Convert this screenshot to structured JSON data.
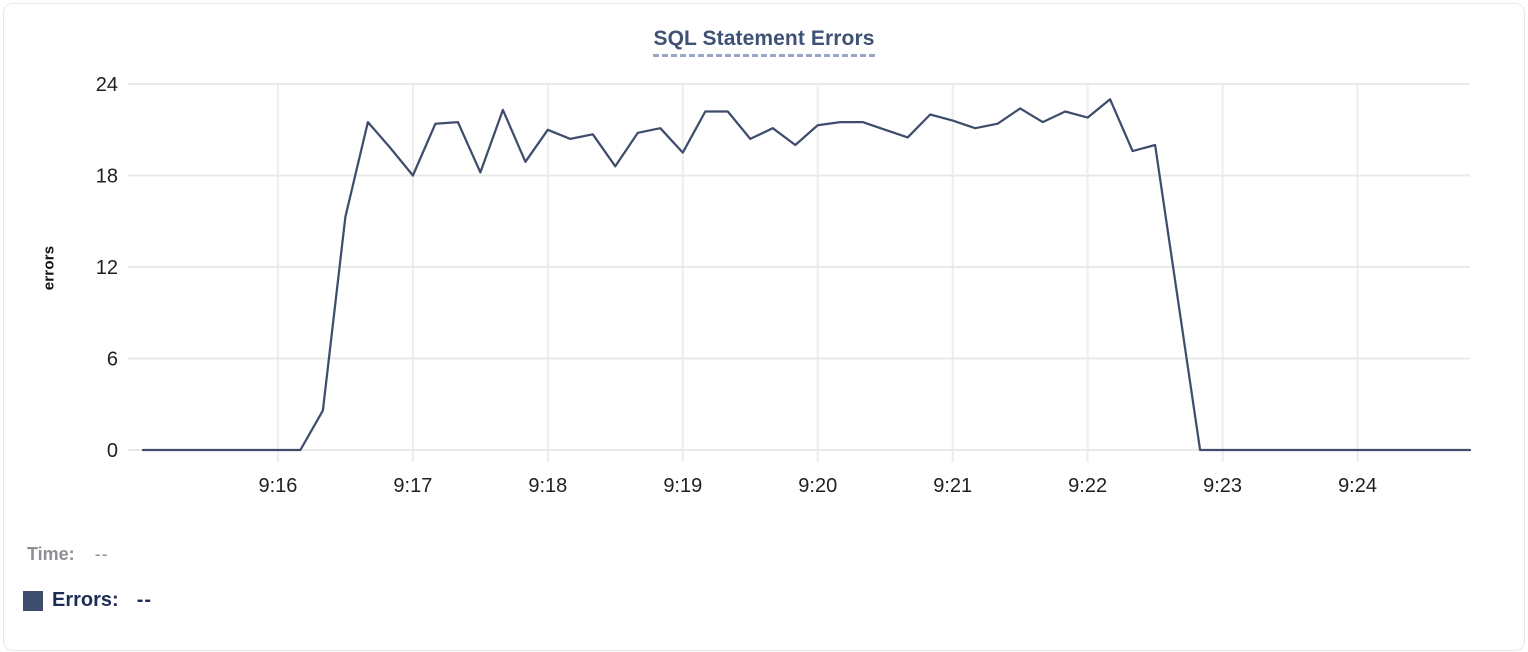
{
  "header": {
    "title": "SQL Statement Errors",
    "title_color": "#3f5175",
    "underline_color": "#9ba7c6"
  },
  "readout": {
    "time_label": "Time:",
    "time_value": "--",
    "time_color": "#8e8f94",
    "errors_label": "Errors:",
    "errors_value": "--",
    "errors_color": "#1d2d56",
    "swatch_color": "#3f4d6d"
  },
  "chart_data": {
    "type": "line",
    "title": "SQL Statement Errors",
    "xlabel": "",
    "ylabel": "errors",
    "ylim": [
      0,
      24
    ],
    "y_ticks": [
      0,
      6,
      12,
      18,
      24
    ],
    "x_tick_labels": [
      "9:16",
      "9:17",
      "9:18",
      "9:19",
      "9:20",
      "9:21",
      "9:22",
      "9:23",
      "9:24"
    ],
    "x_range": [
      "9:15:00",
      "9:24:50"
    ],
    "grid": true,
    "grid_color": "#e9e9e9",
    "vgrid_color": "#ededed",
    "tick_label_color": "#1f1f1f",
    "legend_position": "bottom-left",
    "series": [
      {
        "name": "Errors",
        "color": "#3f4d6d",
        "x_times": [
          "9:15:00",
          "9:15:10",
          "9:15:20",
          "9:15:30",
          "9:15:40",
          "9:15:50",
          "9:16:00",
          "9:16:10",
          "9:16:20",
          "9:16:30",
          "9:16:40",
          "9:16:50",
          "9:17:00",
          "9:17:10",
          "9:17:20",
          "9:17:30",
          "9:17:40",
          "9:17:50",
          "9:18:00",
          "9:18:10",
          "9:18:20",
          "9:18:30",
          "9:18:40",
          "9:18:50",
          "9:19:00",
          "9:19:10",
          "9:19:20",
          "9:19:30",
          "9:19:40",
          "9:19:50",
          "9:20:00",
          "9:20:10",
          "9:20:20",
          "9:20:30",
          "9:20:40",
          "9:20:50",
          "9:21:00",
          "9:21:10",
          "9:21:20",
          "9:21:30",
          "9:21:40",
          "9:21:50",
          "9:22:00",
          "9:22:10",
          "9:22:20",
          "9:22:30",
          "9:22:40",
          "9:22:50",
          "9:23:00",
          "9:23:10",
          "9:23:20",
          "9:23:30",
          "9:23:40",
          "9:23:50",
          "9:24:00",
          "9:24:10",
          "9:24:20",
          "9:24:30",
          "9:24:40",
          "9:24:50"
        ],
        "values": [
          0,
          0,
          0,
          0,
          0,
          0,
          0,
          0,
          2.6,
          15.3,
          21.5,
          19.8,
          18,
          21.4,
          21.5,
          18.2,
          22.3,
          18.9,
          21,
          20.4,
          20.7,
          18.6,
          20.8,
          21.1,
          19.5,
          22.2,
          22.2,
          20.4,
          21.1,
          20,
          21.3,
          21.5,
          21.5,
          21,
          20.5,
          22,
          21.6,
          21.1,
          21.4,
          22.4,
          21.5,
          22.2,
          21.8,
          23,
          19.6,
          20,
          10,
          0,
          0,
          0,
          0,
          0,
          0,
          0,
          0,
          0,
          0,
          0,
          0,
          0
        ]
      }
    ]
  }
}
